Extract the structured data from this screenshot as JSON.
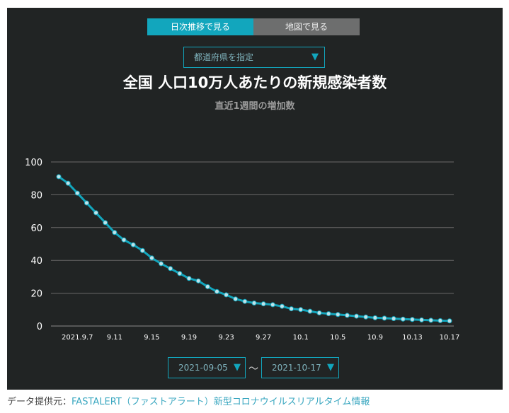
{
  "tabs": {
    "trend_label": "日次推移で見る",
    "map_label": "地図で見る"
  },
  "prefecture_select": {
    "placeholder": "都道府県を指定"
  },
  "chart_data": {
    "type": "line",
    "title": "全国 人口10万人あたりの新規感染者数",
    "subtitle": "直近1週間の増加数",
    "xlabel": "",
    "ylabel": "",
    "ylim": [
      0,
      100
    ],
    "yticks": [
      0,
      20,
      40,
      60,
      80,
      100
    ],
    "grid": true,
    "x_tick_labels": [
      "2021.9.7",
      "9.11",
      "9.15",
      "9.19",
      "9.23",
      "9.27",
      "10.1",
      "10.5",
      "10.9",
      "10.13",
      "10.17"
    ],
    "x_start_label": "2021-09-05",
    "x_end_label": "2021-10-17",
    "series": [
      {
        "values": [
          91,
          87,
          81,
          75,
          69,
          63,
          57,
          52.5,
          49.5,
          46,
          41.5,
          38,
          35,
          32,
          29,
          27.5,
          24,
          21,
          19,
          16.5,
          15,
          14,
          13.5,
          13,
          12,
          10.5,
          10,
          9,
          8,
          7.5,
          7,
          6.5,
          6,
          5.5,
          5,
          4.8,
          4.5,
          4.2,
          4,
          3.7,
          3.5,
          3.3,
          3.1
        ]
      }
    ],
    "line_color": "#12a6bd",
    "marker_fill": "#bfe3ea"
  },
  "date_range": {
    "start": "2021-09-05",
    "end": "2021-10-17",
    "separator": "〜"
  },
  "credit": {
    "prefix": "データ提供元：",
    "link_text": "FASTALERT（ファストアラート）新型コロナウイルスリアルタイム情報"
  }
}
